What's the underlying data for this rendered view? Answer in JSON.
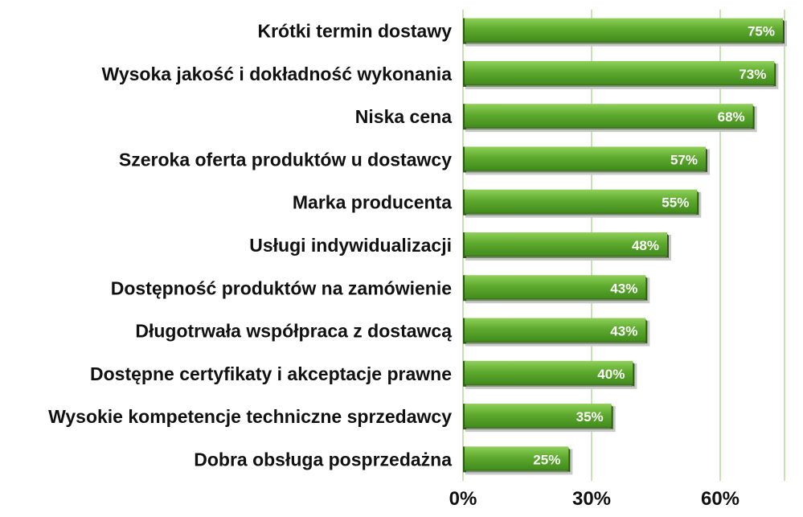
{
  "chart_data": {
    "type": "bar",
    "orientation": "horizontal",
    "categories": [
      "Krótki termin dostawy",
      "Wysoka jakość i dokładność wykonania",
      "Niska cena",
      "Szeroka oferta produktów u dostawcy",
      "Marka producenta",
      "Usługi indywidualizacji",
      "Dostępność produktów na zamówienie",
      "Długotrwała współpraca z dostawcą",
      "Dostępne certyfikaty i akceptacje prawne",
      "Wysokie kompetencje techniczne sprzedawcy",
      "Dobra obsługa posprzedażna"
    ],
    "values": [
      75,
      73,
      68,
      57,
      55,
      48,
      43,
      43,
      40,
      35,
      25
    ],
    "value_labels": [
      "75%",
      "73%",
      "68%",
      "57%",
      "55%",
      "48%",
      "43%",
      "43%",
      "40%",
      "35%",
      "25%"
    ],
    "xlim": [
      0,
      75
    ],
    "xticks": [
      0,
      30,
      60
    ],
    "xtick_labels": [
      "0%",
      "30%",
      "60%"
    ],
    "grid": "vertical",
    "legend": "none",
    "colors": {
      "bar": "#5eaa2e",
      "bar_top": "#8fd05a",
      "bar_side": "#2f5a14",
      "grid": "#8fc46a",
      "text": "#111111",
      "value_text": "#ffffff"
    }
  }
}
